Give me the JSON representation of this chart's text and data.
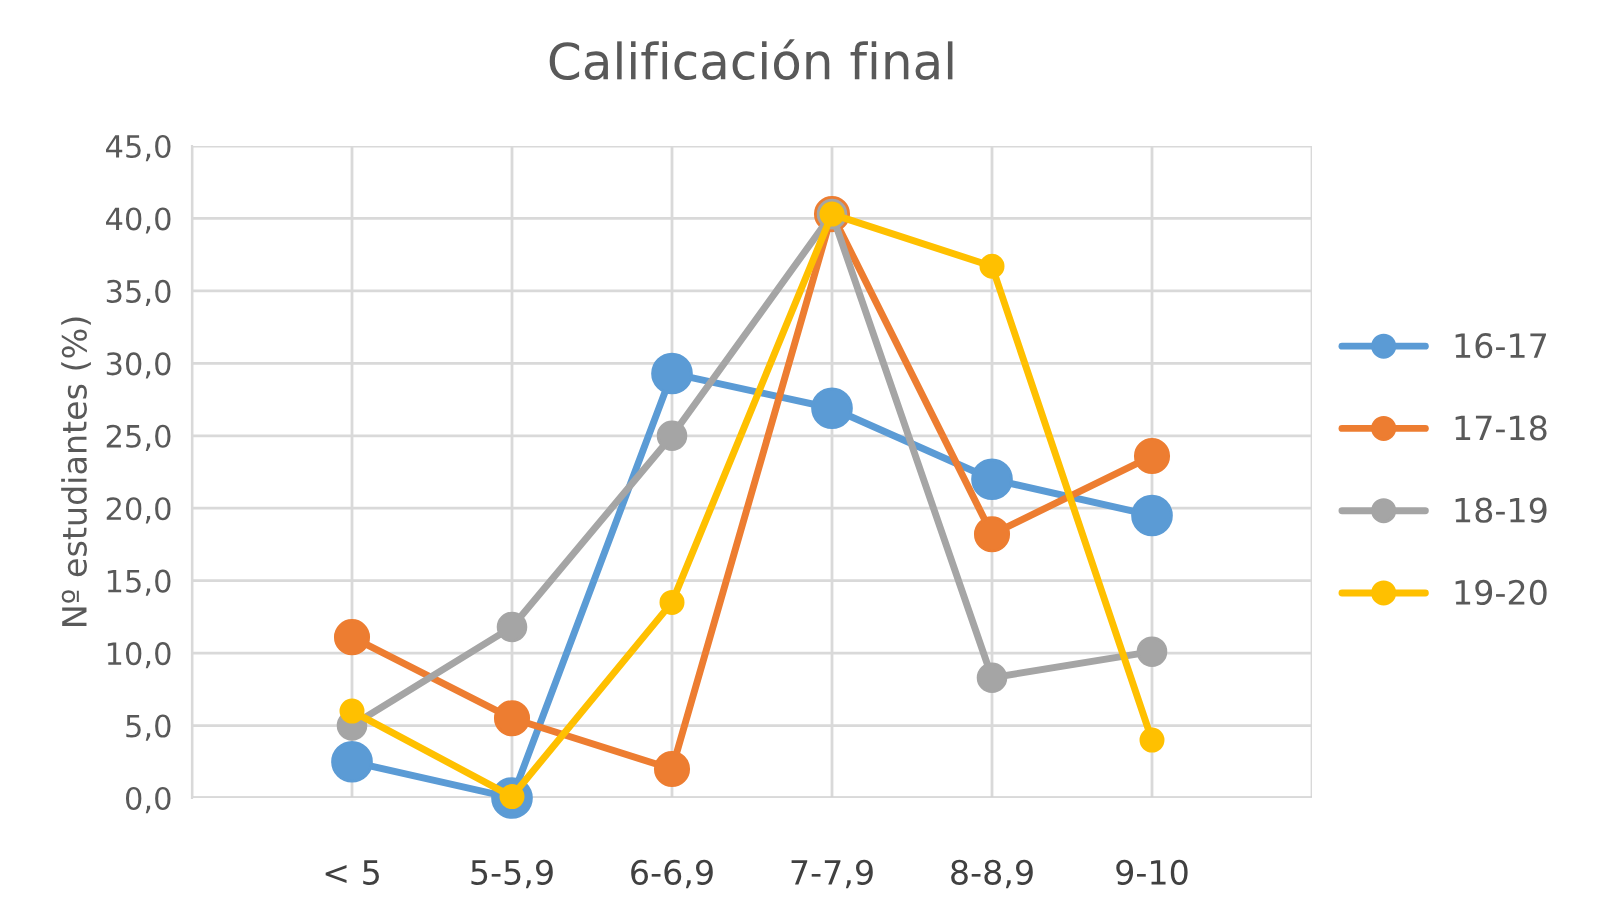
{
  "chart_data": {
    "type": "line",
    "title": "Calificación final",
    "ylabel": "Nº estudiantes (%)",
    "categories": [
      "< 5",
      "5-5,9",
      "6-6,9",
      "7-7,9",
      "8-8,9",
      "9-10"
    ],
    "series": [
      {
        "name": "16-17",
        "color": "#5b9bd5",
        "values": [
          2.5,
          0.0,
          29.3,
          26.9,
          22.0,
          19.5
        ]
      },
      {
        "name": "17-18",
        "color": "#ed7d31",
        "values": [
          11.1,
          5.5,
          2.0,
          40.3,
          18.2,
          23.6
        ]
      },
      {
        "name": "18-19",
        "color": "#a5a5a5",
        "values": [
          5.0,
          11.8,
          25.0,
          40.3,
          8.3,
          10.1
        ]
      },
      {
        "name": "19-20",
        "color": "#ffc000",
        "values": [
          6.0,
          0.1,
          13.5,
          40.3,
          36.7,
          4.0
        ]
      }
    ],
    "ylim": [
      0,
      45
    ],
    "yticks": [
      {
        "value": 0,
        "label": "0,0"
      },
      {
        "value": 5,
        "label": "5,0"
      },
      {
        "value": 10,
        "label": "10,0"
      },
      {
        "value": 15,
        "label": "15,0"
      },
      {
        "value": 20,
        "label": "20,0"
      },
      {
        "value": 25,
        "label": "25,0"
      },
      {
        "value": 30,
        "label": "30,0"
      },
      {
        "value": 35,
        "label": "35,0"
      },
      {
        "value": 40,
        "label": "40,0"
      },
      {
        "value": 45,
        "label": "45,0"
      }
    ],
    "grid": true,
    "legend": "right",
    "marker": "circle",
    "line_style": "solid"
  }
}
